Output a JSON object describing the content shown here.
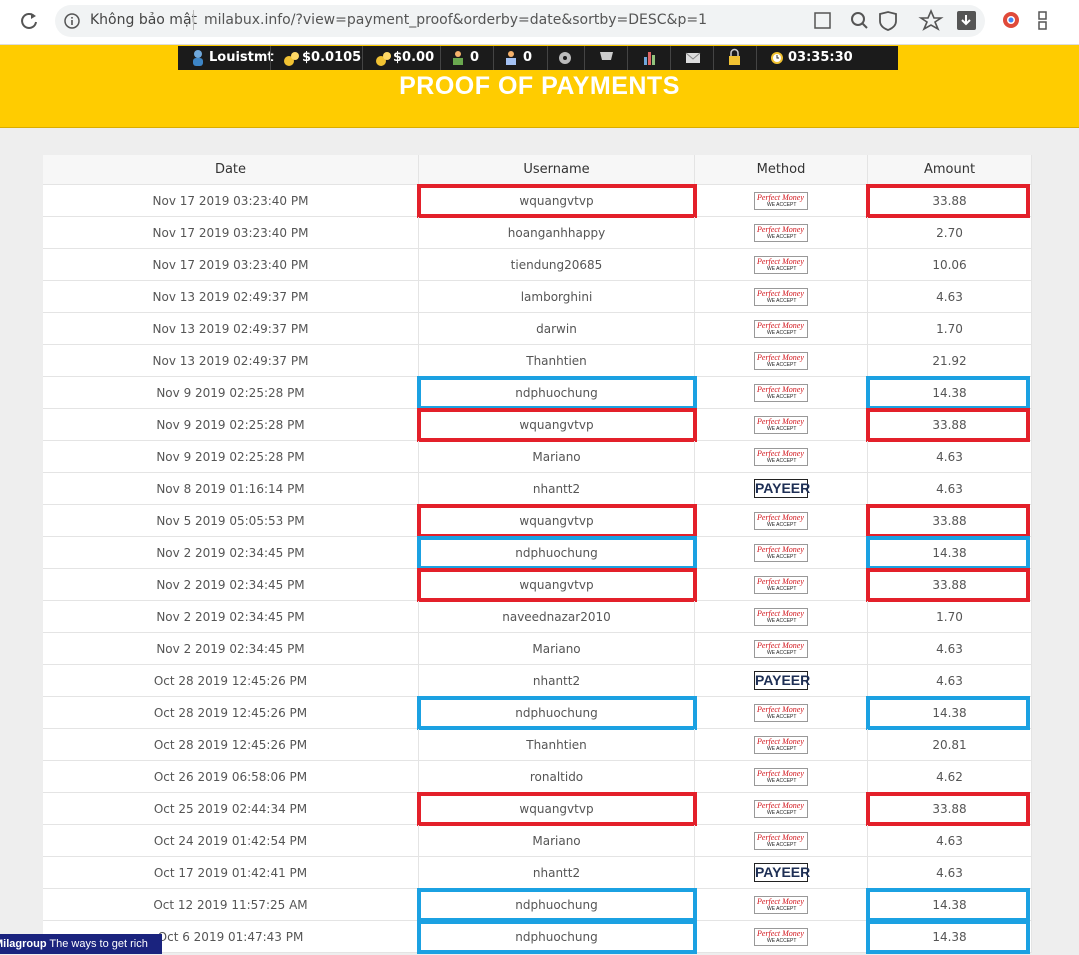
{
  "browser": {
    "security": "Không bảo mật",
    "url": "milabux.info/?view=payment_proof&orderby=date&sortby=DESC&p=1"
  },
  "toolbar": {
    "username": "Louistmt",
    "balance_main": "$0.0105",
    "balance_purchase": "$0.00",
    "referrals_direct": "0",
    "referrals_rented": "0",
    "time": "03:35:30"
  },
  "header": {
    "title": "PROOF OF PAYMENTS"
  },
  "table": {
    "columns": [
      "Date",
      "Username",
      "Method",
      "Amount"
    ],
    "logo_tagline": "WE ACCEPT",
    "rows": [
      {
        "date": "Nov 17 2019 03:23:40 PM",
        "username": "wquangvtvp",
        "method": "Perfect Money",
        "amount": "33.88",
        "highlight": "#e3202a"
      },
      {
        "date": "Nov 17 2019 03:23:40 PM",
        "username": "hoanganhhappy",
        "method": "Perfect Money",
        "amount": "2.70"
      },
      {
        "date": "Nov 17 2019 03:23:40 PM",
        "username": "tiendung20685",
        "method": "Perfect Money",
        "amount": "10.06"
      },
      {
        "date": "Nov 13 2019 02:49:37 PM",
        "username": "lamborghini",
        "method": "Perfect Money",
        "amount": "4.63"
      },
      {
        "date": "Nov 13 2019 02:49:37 PM",
        "username": "darwin",
        "method": "Perfect Money",
        "amount": "1.70"
      },
      {
        "date": "Nov 13 2019 02:49:37 PM",
        "username": "Thanhtien",
        "method": "Perfect Money",
        "amount": "21.92"
      },
      {
        "date": "Nov 9 2019 02:25:28 PM",
        "username": "ndphuochung",
        "method": "Perfect Money",
        "amount": "14.38",
        "highlight": "#1ba1e2"
      },
      {
        "date": "Nov 9 2019 02:25:28 PM",
        "username": "wquangvtvp",
        "method": "Perfect Money",
        "amount": "33.88",
        "highlight": "#e3202a"
      },
      {
        "date": "Nov 9 2019 02:25:28 PM",
        "username": "Mariano",
        "method": "Perfect Money",
        "amount": "4.63"
      },
      {
        "date": "Nov 8 2019 01:16:14 PM",
        "username": "nhantt2",
        "method": "PAYEER",
        "amount": "4.63"
      },
      {
        "date": "Nov 5 2019 05:05:53 PM",
        "username": "wquangvtvp",
        "method": "Perfect Money",
        "amount": "33.88",
        "highlight": "#e3202a"
      },
      {
        "date": "Nov 2 2019 02:34:45 PM",
        "username": "ndphuochung",
        "method": "Perfect Money",
        "amount": "14.38",
        "highlight": "#1ba1e2"
      },
      {
        "date": "Nov 2 2019 02:34:45 PM",
        "username": "wquangvtvp",
        "method": "Perfect Money",
        "amount": "33.88",
        "highlight": "#e3202a"
      },
      {
        "date": "Nov 2 2019 02:34:45 PM",
        "username": "naveednazar2010",
        "method": "Perfect Money",
        "amount": "1.70"
      },
      {
        "date": "Nov 2 2019 02:34:45 PM",
        "username": "Mariano",
        "method": "Perfect Money",
        "amount": "4.63"
      },
      {
        "date": "Oct 28 2019 12:45:26 PM",
        "username": "nhantt2",
        "method": "PAYEER",
        "amount": "4.63"
      },
      {
        "date": "Oct 28 2019 12:45:26 PM",
        "username": "ndphuochung",
        "method": "Perfect Money",
        "amount": "14.38",
        "highlight": "#1ba1e2"
      },
      {
        "date": "Oct 28 2019 12:45:26 PM",
        "username": "Thanhtien",
        "method": "Perfect Money",
        "amount": "20.81"
      },
      {
        "date": "Oct 26 2019 06:58:06 PM",
        "username": "ronaltido",
        "method": "Perfect Money",
        "amount": "4.62"
      },
      {
        "date": "Oct 25 2019 02:44:34 PM",
        "username": "wquangvtvp",
        "method": "Perfect Money",
        "amount": "33.88",
        "highlight": "#e3202a"
      },
      {
        "date": "Oct 24 2019 01:42:54 PM",
        "username": "Mariano",
        "method": "Perfect Money",
        "amount": "4.63"
      },
      {
        "date": "Oct 17 2019 01:42:41 PM",
        "username": "nhantt2",
        "method": "PAYEER",
        "amount": "4.63"
      },
      {
        "date": "Oct 12 2019 11:57:25 AM",
        "username": "ndphuochung",
        "method": "Perfect Money",
        "amount": "14.38",
        "highlight": "#1ba1e2"
      },
      {
        "date": "Oct 6 2019 01:47:43 PM",
        "username": "ndphuochung",
        "method": "Perfect Money",
        "amount": "14.38",
        "highlight": "#1ba1e2"
      }
    ]
  },
  "footer_badge": {
    "brand": "Milagroup",
    "slogan": "The ways to get rich"
  }
}
